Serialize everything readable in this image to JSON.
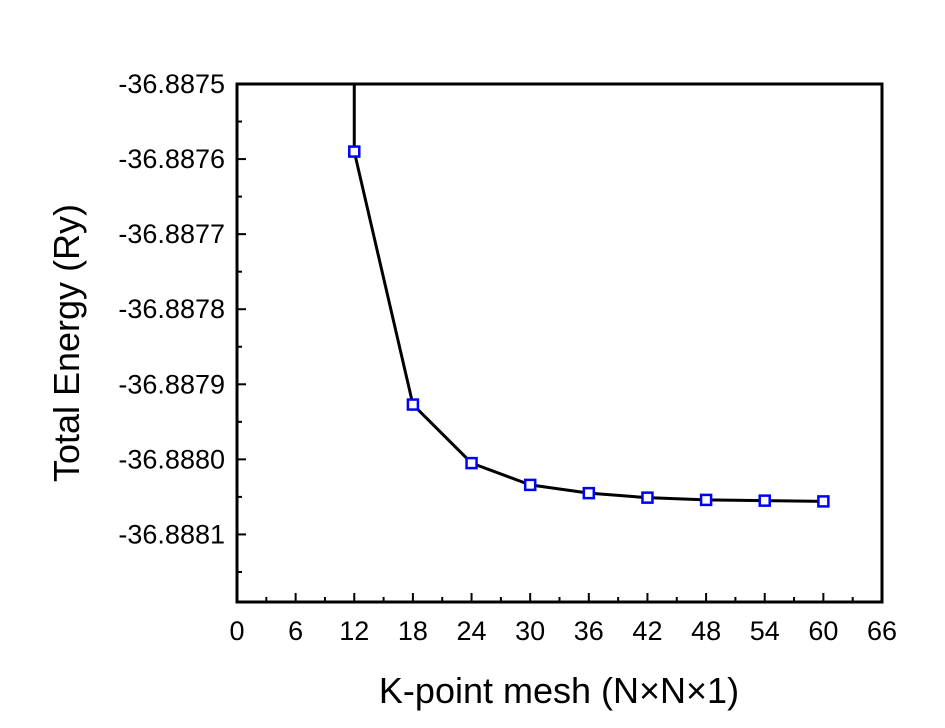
{
  "chart_data": {
    "type": "line",
    "title": "",
    "xlabel": "K-point mesh (N×N×1)",
    "ylabel": "Total Energy (Ry)",
    "xlim": [
      0,
      66
    ],
    "ylim": [
      -36.88819,
      -36.8875
    ],
    "x_ticks": [
      0,
      6,
      12,
      18,
      24,
      30,
      36,
      42,
      48,
      54,
      60,
      66
    ],
    "x_tick_labels": [
      "0",
      "6",
      "12",
      "18",
      "24",
      "30",
      "36",
      "42",
      "48",
      "54",
      "60",
      "66"
    ],
    "y_ticks": [
      -36.8875,
      -36.8876,
      -36.8877,
      -36.8878,
      -36.8879,
      -36.888,
      -36.8881
    ],
    "y_tick_labels": [
      "-36.8875",
      "-36.8876",
      "-36.8877",
      "-36.8878",
      "-36.8879",
      "-36.8880",
      "-36.8881"
    ],
    "grid": false,
    "legend": "none",
    "series": [
      {
        "marker": "open-square",
        "marker_color": "#0000ff",
        "line_color": "#000000",
        "points": [
          {
            "x": 12,
            "y": -36.88759
          },
          {
            "x": 18,
            "y": -36.887927
          },
          {
            "x": 24,
            "y": -36.888005
          },
          {
            "x": 30,
            "y": -36.888034
          },
          {
            "x": 36,
            "y": -36.888045
          },
          {
            "x": 42,
            "y": -36.888051
          },
          {
            "x": 48,
            "y": -36.888054
          },
          {
            "x": 54,
            "y": -36.888055
          },
          {
            "x": 60,
            "y": -36.888056
          }
        ],
        "line_extends_above_axis_from_x": 12
      }
    ]
  }
}
